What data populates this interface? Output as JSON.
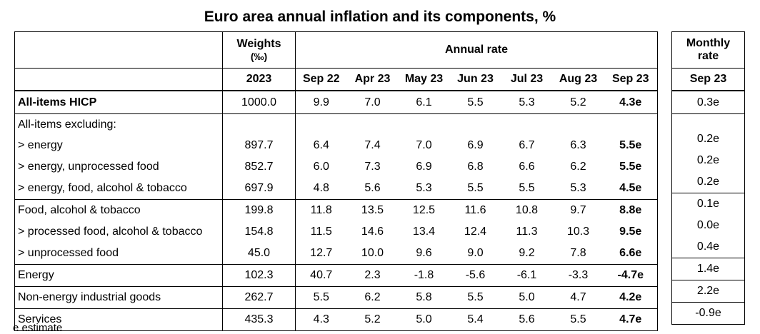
{
  "chart_data": {
    "type": "table",
    "title": "Euro area annual inflation and its components, %",
    "header": {
      "weights_label_line1": "Weights",
      "weights_label_line2": "(‰)",
      "annual_rate_label": "Annual rate",
      "monthly_label_line1": "Monthly",
      "monthly_label_line2": "rate",
      "weights_year": "2023",
      "periods": [
        "Sep 22",
        "Apr 23",
        "May 23",
        "Jun 23",
        "Jul 23",
        "Aug 23",
        "Sep 23"
      ],
      "monthly_period": "Sep 23"
    },
    "rows": [
      {
        "label": "All-items HICP",
        "weight": "1000.0",
        "values": [
          "9.9",
          "7.0",
          "6.1",
          "5.5",
          "5.3",
          "5.2",
          "4.3e"
        ],
        "monthly": "0.3e"
      },
      {
        "label": "All-items excluding:",
        "weight": "",
        "values": [
          "",
          "",
          "",
          "",
          "",
          "",
          ""
        ],
        "monthly": ""
      },
      {
        "label": "> energy",
        "weight": "897.7",
        "values": [
          "6.4",
          "7.4",
          "7.0",
          "6.9",
          "6.7",
          "6.3",
          "5.5e"
        ],
        "monthly": "0.2e"
      },
      {
        "label": "> energy, unprocessed food",
        "weight": "852.7",
        "values": [
          "6.0",
          "7.3",
          "6.9",
          "6.8",
          "6.6",
          "6.2",
          "5.5e"
        ],
        "monthly": "0.2e"
      },
      {
        "label": "> energy, food, alcohol & tobacco",
        "weight": "697.9",
        "values": [
          "4.8",
          "5.6",
          "5.3",
          "5.5",
          "5.5",
          "5.3",
          "4.5e"
        ],
        "monthly": "0.2e"
      },
      {
        "label": "Food, alcohol & tobacco",
        "weight": "199.8",
        "values": [
          "11.8",
          "13.5",
          "12.5",
          "11.6",
          "10.8",
          "9.7",
          "8.8e"
        ],
        "monthly": "0.1e"
      },
      {
        "label": "> processed food, alcohol & tobacco",
        "weight": "154.8",
        "values": [
          "11.5",
          "14.6",
          "13.4",
          "12.4",
          "11.3",
          "10.3",
          "9.5e"
        ],
        "monthly": "0.0e"
      },
      {
        "label": "> unprocessed food",
        "weight": "45.0",
        "values": [
          "12.7",
          "10.0",
          "9.6",
          "9.0",
          "9.2",
          "7.8",
          "6.6e"
        ],
        "monthly": "0.4e"
      },
      {
        "label": "Energy",
        "weight": "102.3",
        "values": [
          "40.7",
          "2.3",
          "-1.8",
          "-5.6",
          "-6.1",
          "-3.3",
          "-4.7e"
        ],
        "monthly": "1.4e"
      },
      {
        "label": "Non-energy industrial goods",
        "weight": "262.7",
        "values": [
          "5.5",
          "6.2",
          "5.8",
          "5.5",
          "5.0",
          "4.7",
          "4.2e"
        ],
        "monthly": "2.2e"
      },
      {
        "label": "Services",
        "weight": "435.3",
        "values": [
          "4.3",
          "5.2",
          "5.0",
          "5.4",
          "5.6",
          "5.5",
          "4.7e"
        ],
        "monthly": "-0.9e"
      }
    ],
    "footnote": "e estimate"
  }
}
